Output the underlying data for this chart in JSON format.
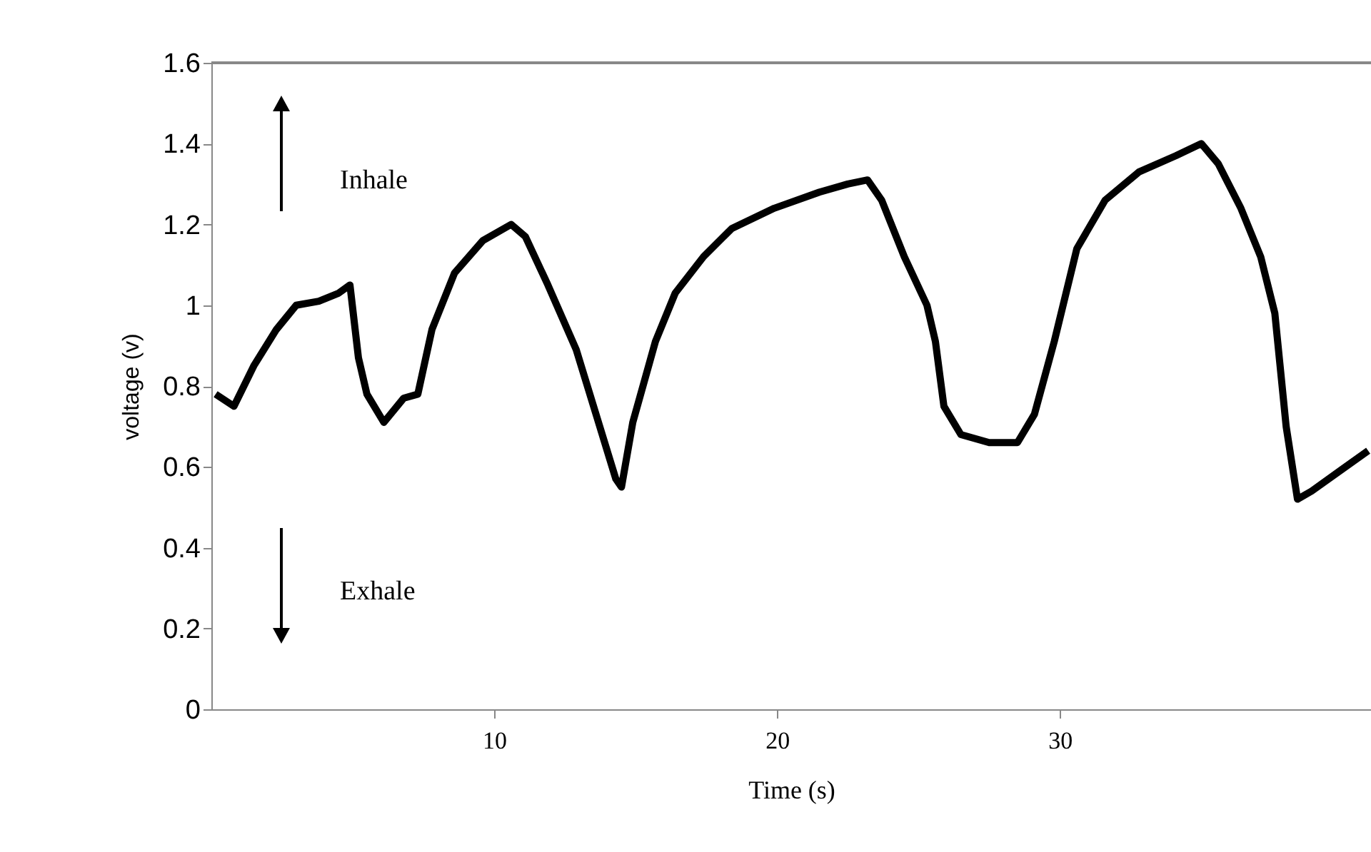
{
  "chart_data": {
    "type": "line",
    "xlabel": "Time (s)",
    "ylabel": "voltage (v)",
    "annotations": [
      "Inhale",
      "Exhale"
    ],
    "xlim": [
      0,
      41
    ],
    "xticks": [
      10,
      20,
      30
    ],
    "ylim": [
      0,
      1.6
    ],
    "yticks": [
      0,
      0.2,
      0.4,
      0.6,
      0.8,
      1,
      1.2,
      1.4,
      1.6
    ],
    "x": [
      0.15,
      0.8,
      1.5,
      2.3,
      3.0,
      3.8,
      4.5,
      4.9,
      5.2,
      5.5,
      6.1,
      6.8,
      7.3,
      7.8,
      8.6,
      9.6,
      10.6,
      11.1,
      11.9,
      12.9,
      13.6,
      14.3,
      14.5,
      14.9,
      15.7,
      16.4,
      17.4,
      18.4,
      19.9,
      21.5,
      22.5,
      23.2,
      23.7,
      24.5,
      25.3,
      25.6,
      25.9,
      26.5,
      27.5,
      28.5,
      29.1,
      29.8,
      30.6,
      31.6,
      32.8,
      34.1,
      35.0,
      35.6,
      36.4,
      37.1,
      37.6,
      38.0,
      38.4,
      38.9,
      39.9,
      40.9
    ],
    "series": [
      {
        "color": "#000000",
        "values": [
          0.78,
          0.75,
          0.85,
          0.94,
          1.0,
          1.01,
          1.03,
          1.05,
          0.87,
          0.78,
          0.71,
          0.77,
          0.78,
          0.94,
          1.08,
          1.16,
          1.2,
          1.17,
          1.05,
          0.89,
          0.73,
          0.57,
          0.55,
          0.71,
          0.91,
          1.03,
          1.12,
          1.19,
          1.24,
          1.28,
          1.3,
          1.31,
          1.26,
          1.12,
          1.0,
          0.91,
          0.75,
          0.68,
          0.66,
          0.66,
          0.73,
          0.91,
          1.14,
          1.26,
          1.33,
          1.37,
          1.4,
          1.35,
          1.24,
          1.12,
          0.98,
          0.7,
          0.52,
          0.54,
          0.59,
          0.64
        ]
      }
    ],
    "grid": false,
    "marker": "none",
    "line_style": "solid"
  }
}
